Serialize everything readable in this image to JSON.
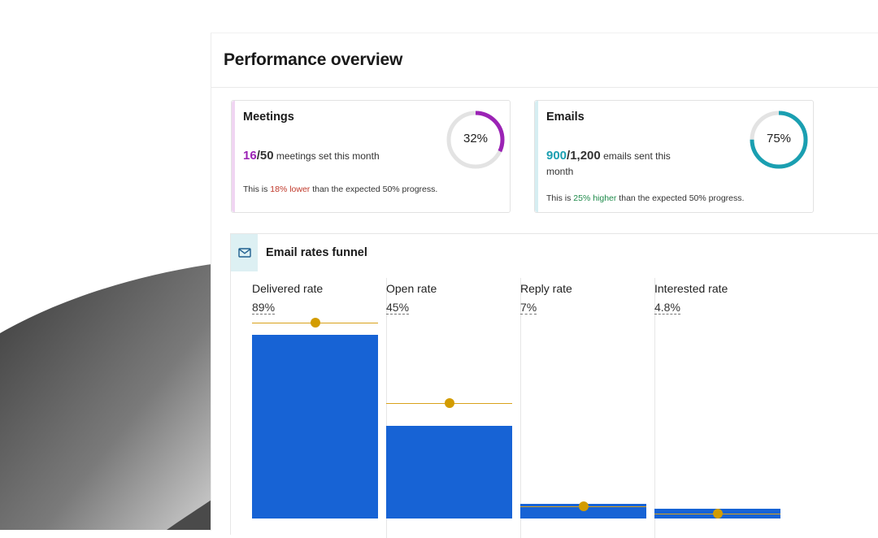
{
  "page": {
    "title": "Performance overview"
  },
  "cards": [
    {
      "title": "Meetings",
      "current": "16",
      "target": "/50",
      "metric_text": "meetings set this month",
      "progress": 0.32,
      "progress_label": "32%",
      "note_prefix": "This is ",
      "note_highlight": "18% lower",
      "note_suffix": " than the expected 50% progress.",
      "accent_color": "#f0d5f2",
      "number_color": "#9b23b5",
      "ring_color": "#9b23b5",
      "highlight_color": "#c0392b"
    },
    {
      "title": "Emails",
      "current": "900",
      "target": "/1,200",
      "metric_text": "emails sent this month",
      "progress": 0.75,
      "progress_label": "75%",
      "note_prefix": "This is ",
      "note_highlight": "25% higher",
      "note_suffix": " than the expected 50% progress.",
      "accent_color": "#d6eef2",
      "number_color": "#1a9fb1",
      "ring_color": "#1a9fb1",
      "highlight_color": "#1e8a4a"
    }
  ],
  "funnel": {
    "title": "Email rates funnel",
    "icon": "mail-icon",
    "bar_color": "#1763d5",
    "target_color": "#d39c00",
    "columns": [
      {
        "label": "Delivered rate",
        "value_label": "89%",
        "value": 89,
        "target": 95
      },
      {
        "label": "Open rate",
        "value_label": "45%",
        "value": 45,
        "target": 56
      },
      {
        "label": "Reply rate",
        "value_label": "7%",
        "value": 7,
        "target": 6
      },
      {
        "label": "Interested rate",
        "value_label": "4.8%",
        "value": 4.8,
        "target": 2.2
      }
    ]
  }
}
